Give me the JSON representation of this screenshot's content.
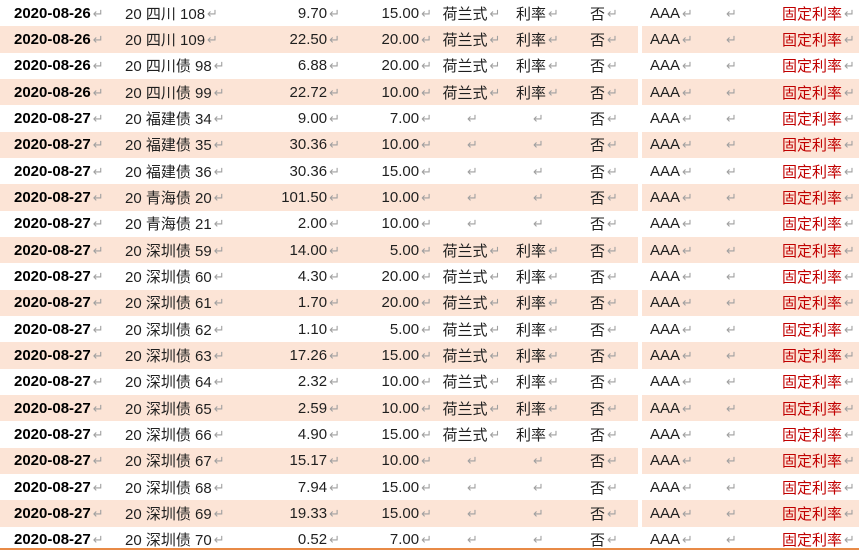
{
  "document": {
    "line_break_mark": "↵",
    "colors": {
      "row_stripe": "#FCE4D6",
      "body_text": "#1F1F1F",
      "fixed_rate_text": "#C00000",
      "break_mark": "#A0A0A0",
      "bottom_rule": "#E88A46"
    },
    "table": {
      "rows": [
        {
          "date": "2020-08-26",
          "bond_name": "20 四川 108",
          "amount": "9.70",
          "percent": "15.00",
          "auction_type": "荷兰式",
          "bid_target": "利率",
          "flag": "否",
          "rating": "AAA",
          "fixed_rate": "固定利率"
        },
        {
          "date": "2020-08-26",
          "bond_name": "20 四川 109",
          "amount": "22.50",
          "percent": "20.00",
          "auction_type": "荷兰式",
          "bid_target": "利率",
          "flag": "否",
          "rating": "AAA",
          "fixed_rate": "固定利率"
        },
        {
          "date": "2020-08-26",
          "bond_name": "20 四川债 98",
          "amount": "6.88",
          "percent": "20.00",
          "auction_type": "荷兰式",
          "bid_target": "利率",
          "flag": "否",
          "rating": "AAA",
          "fixed_rate": "固定利率"
        },
        {
          "date": "2020-08-26",
          "bond_name": "20 四川债 99",
          "amount": "22.72",
          "percent": "10.00",
          "auction_type": "荷兰式",
          "bid_target": "利率",
          "flag": "否",
          "rating": "AAA",
          "fixed_rate": "固定利率"
        },
        {
          "date": "2020-08-27",
          "bond_name": "20 福建债 34",
          "amount": "9.00",
          "percent": "7.00",
          "auction_type": "",
          "bid_target": "",
          "flag": "否",
          "rating": "AAA",
          "fixed_rate": "固定利率"
        },
        {
          "date": "2020-08-27",
          "bond_name": "20 福建债 35",
          "amount": "30.36",
          "percent": "10.00",
          "auction_type": "",
          "bid_target": "",
          "flag": "否",
          "rating": "AAA",
          "fixed_rate": "固定利率"
        },
        {
          "date": "2020-08-27",
          "bond_name": "20 福建债 36",
          "amount": "30.36",
          "percent": "15.00",
          "auction_type": "",
          "bid_target": "",
          "flag": "否",
          "rating": "AAA",
          "fixed_rate": "固定利率"
        },
        {
          "date": "2020-08-27",
          "bond_name": "20 青海债 20",
          "amount": "101.50",
          "percent": "10.00",
          "auction_type": "",
          "bid_target": "",
          "flag": "否",
          "rating": "AAA",
          "fixed_rate": "固定利率"
        },
        {
          "date": "2020-08-27",
          "bond_name": "20 青海债 21",
          "amount": "2.00",
          "percent": "10.00",
          "auction_type": "",
          "bid_target": "",
          "flag": "否",
          "rating": "AAA",
          "fixed_rate": "固定利率"
        },
        {
          "date": "2020-08-27",
          "bond_name": "20 深圳债 59",
          "amount": "14.00",
          "percent": "5.00",
          "auction_type": "荷兰式",
          "bid_target": "利率",
          "flag": "否",
          "rating": "AAA",
          "fixed_rate": "固定利率"
        },
        {
          "date": "2020-08-27",
          "bond_name": "20 深圳债 60",
          "amount": "4.30",
          "percent": "20.00",
          "auction_type": "荷兰式",
          "bid_target": "利率",
          "flag": "否",
          "rating": "AAA",
          "fixed_rate": "固定利率"
        },
        {
          "date": "2020-08-27",
          "bond_name": "20 深圳债 61",
          "amount": "1.70",
          "percent": "20.00",
          "auction_type": "荷兰式",
          "bid_target": "利率",
          "flag": "否",
          "rating": "AAA",
          "fixed_rate": "固定利率"
        },
        {
          "date": "2020-08-27",
          "bond_name": "20 深圳债 62",
          "amount": "1.10",
          "percent": "5.00",
          "auction_type": "荷兰式",
          "bid_target": "利率",
          "flag": "否",
          "rating": "AAA",
          "fixed_rate": "固定利率"
        },
        {
          "date": "2020-08-27",
          "bond_name": "20 深圳债 63",
          "amount": "17.26",
          "percent": "15.00",
          "auction_type": "荷兰式",
          "bid_target": "利率",
          "flag": "否",
          "rating": "AAA",
          "fixed_rate": "固定利率"
        },
        {
          "date": "2020-08-27",
          "bond_name": "20 深圳债 64",
          "amount": "2.32",
          "percent": "10.00",
          "auction_type": "荷兰式",
          "bid_target": "利率",
          "flag": "否",
          "rating": "AAA",
          "fixed_rate": "固定利率"
        },
        {
          "date": "2020-08-27",
          "bond_name": "20 深圳债 65",
          "amount": "2.59",
          "percent": "10.00",
          "auction_type": "荷兰式",
          "bid_target": "利率",
          "flag": "否",
          "rating": "AAA",
          "fixed_rate": "固定利率"
        },
        {
          "date": "2020-08-27",
          "bond_name": "20 深圳债 66",
          "amount": "4.90",
          "percent": "15.00",
          "auction_type": "荷兰式",
          "bid_target": "利率",
          "flag": "否",
          "rating": "AAA",
          "fixed_rate": "固定利率"
        },
        {
          "date": "2020-08-27",
          "bond_name": "20 深圳债 67",
          "amount": "15.17",
          "percent": "10.00",
          "auction_type": "",
          "bid_target": "",
          "flag": "否",
          "rating": "AAA",
          "fixed_rate": "固定利率"
        },
        {
          "date": "2020-08-27",
          "bond_name": "20 深圳债 68",
          "amount": "7.94",
          "percent": "15.00",
          "auction_type": "",
          "bid_target": "",
          "flag": "否",
          "rating": "AAA",
          "fixed_rate": "固定利率"
        },
        {
          "date": "2020-08-27",
          "bond_name": "20 深圳债 69",
          "amount": "19.33",
          "percent": "15.00",
          "auction_type": "",
          "bid_target": "",
          "flag": "否",
          "rating": "AAA",
          "fixed_rate": "固定利率"
        },
        {
          "date": "2020-08-27",
          "bond_name": "20 深圳债 70",
          "amount": "0.52",
          "percent": "7.00",
          "auction_type": "",
          "bid_target": "",
          "flag": "否",
          "rating": "AAA",
          "fixed_rate": "固定利率"
        }
      ]
    }
  }
}
